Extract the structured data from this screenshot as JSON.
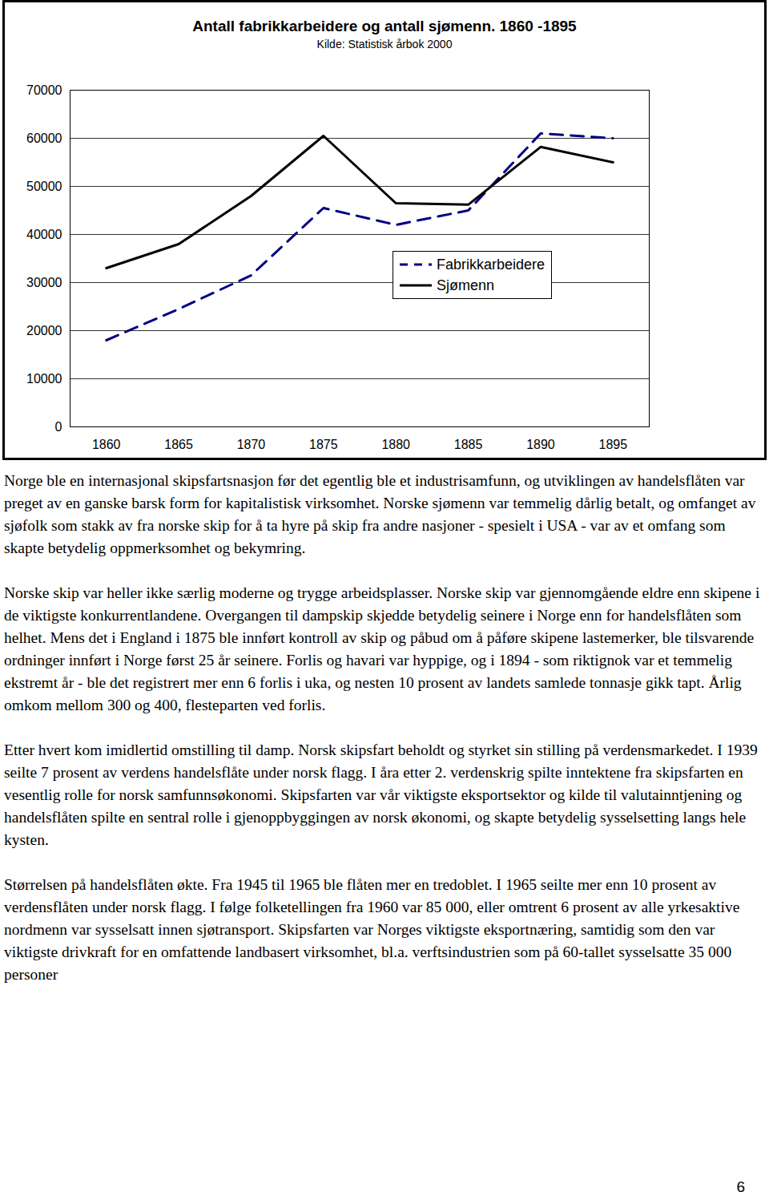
{
  "chart_data": {
    "type": "line",
    "title": "Antall fabrikkarbeidere og antall sjømenn. 1860 -1895",
    "subtitle": "Kilde: Statistisk årbok 2000",
    "x": [
      1860,
      1865,
      1870,
      1875,
      1880,
      1885,
      1890,
      1895
    ],
    "series": [
      {
        "name": "Fabrikkarbeidere",
        "color": "#000080",
        "line_style": "dashed",
        "values": [
          18000,
          24500,
          31500,
          45500,
          42000,
          45000,
          61000,
          60000
        ]
      },
      {
        "name": "Sjømenn",
        "color": "#000000",
        "line_style": "solid",
        "values": [
          33000,
          38000,
          48000,
          60500,
          46500,
          46200,
          58200,
          55000
        ]
      }
    ],
    "xlim": [
      1857.5,
      1897.5
    ],
    "xticks": [
      1860,
      1865,
      1870,
      1875,
      1880,
      1885,
      1890,
      1895
    ],
    "ylim": [
      0,
      70000
    ],
    "yticks": [
      0,
      10000,
      20000,
      30000,
      40000,
      50000,
      60000,
      70000
    ],
    "grid": true,
    "legend": "right"
  },
  "paragraphs": [
    "Norge ble en internasjonal skipsfartsnasjon før det egentlig ble et industrisamfunn, og utviklingen av handelsflåten var preget av en ganske barsk form for kapitalistisk virksomhet. Norske sjømenn var temmelig dårlig betalt, og omfanget av sjøfolk som stakk av fra norske skip for å ta hyre på skip fra andre nasjoner - spesielt i USA - var av et omfang som skapte betydelig oppmerksomhet og bekymring.",
    "Norske skip var heller ikke særlig moderne og trygge arbeidsplasser. Norske skip var gjennomgående eldre enn skipene i de viktigste konkurrentlandene. Overgangen til dampskip skjedde betydelig seinere i Norge enn for handelsflåten som helhet. Mens det i England i 1875 ble innført kontroll av skip og påbud om å påføre skipene lastemerker, ble tilsvarende ordninger innført i Norge først 25 år seinere. Forlis og havari var hyppige, og i 1894 - som riktignok var et temmelig ekstremt år - ble det registrert mer enn 6 forlis i uka, og nesten 10 prosent av landets samlede tonnasje gikk tapt. Årlig omkom mellom 300 og 400, flesteparten ved forlis.",
    "Etter hvert kom imidlertid omstilling til damp. Norsk skipsfart beholdt og styrket sin stilling på verdensmarkedet. I 1939 seilte 7 prosent av verdens handelsflåte under norsk flagg. I åra etter 2. verdenskrig spilte inntektene fra skipsfarten en vesentlig rolle for norsk samfunnsøkonomi. Skipsfarten var vår viktigste eksportsektor og kilde til valutainntjening og handelsflåten spilte en sentral rolle i gjenoppbyggingen av norsk økonomi, og skapte betydelig sysselsetting langs hele kysten.",
    "Størrelsen på handelsflåten økte. Fra 1945 til 1965 ble flåten mer en tredoblet. I 1965 seilte mer enn 10 prosent av verdensflåten under norsk flagg. I følge folketellingen fra 1960 var 85 000, eller omtrent 6 prosent av alle yrkesaktive nordmenn var sysselsatt innen sjøtransport. Skipsfarten var Norges viktigste eksportnæring, samtidig som den var viktigste drivkraft for en omfattende landbasert virksomhet, bl.a. verftsindustrien som på 60-tallet sysselsatte 35 000 personer"
  ],
  "page_number": 6
}
